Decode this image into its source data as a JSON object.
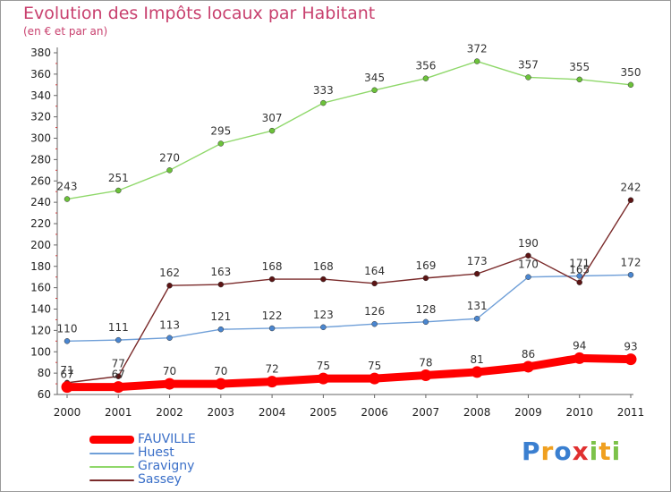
{
  "title": "Evolution des Impôts locaux par Habitant",
  "subtitle": "(en € et par an)",
  "logo": "Proxiti",
  "chart_data": {
    "type": "line",
    "title": "Evolution des Impôts locaux par Habitant",
    "subtitle": "(en € et par an)",
    "xlabel": "",
    "ylabel": "",
    "x": [
      "2000",
      "2001",
      "2002",
      "2003",
      "2004",
      "2005",
      "2006",
      "2007",
      "2008",
      "2009",
      "2010",
      "2011"
    ],
    "yticks": [
      60,
      80,
      100,
      120,
      140,
      160,
      180,
      200,
      220,
      240,
      260,
      280,
      300,
      320,
      340,
      360,
      380
    ],
    "ylim": [
      60,
      380
    ],
    "grid": false,
    "legend_position": "bottom-left",
    "series": [
      {
        "name": "FAUVILLE",
        "values": [
          67,
          67,
          70,
          70,
          72,
          75,
          75,
          78,
          81,
          86,
          94,
          93
        ],
        "color": "#ff0000",
        "marker": "#ff0000",
        "bold": true
      },
      {
        "name": "Huest",
        "values": [
          110,
          111,
          113,
          121,
          122,
          123,
          126,
          128,
          131,
          170,
          171,
          172
        ],
        "color": "#6f9fd8",
        "marker": "#4a86d0",
        "bold": false
      },
      {
        "name": "Gravigny",
        "values": [
          243,
          251,
          270,
          295,
          307,
          333,
          345,
          356,
          372,
          357,
          355,
          350
        ],
        "color": "#8fd86a",
        "marker": "#6cc23a",
        "bold": false
      },
      {
        "name": "Sassey",
        "values": [
          71,
          77,
          162,
          163,
          168,
          168,
          164,
          169,
          173,
          190,
          165,
          242
        ],
        "color": "#7a2a2a",
        "marker": "#5c1414",
        "bold": false
      }
    ]
  }
}
